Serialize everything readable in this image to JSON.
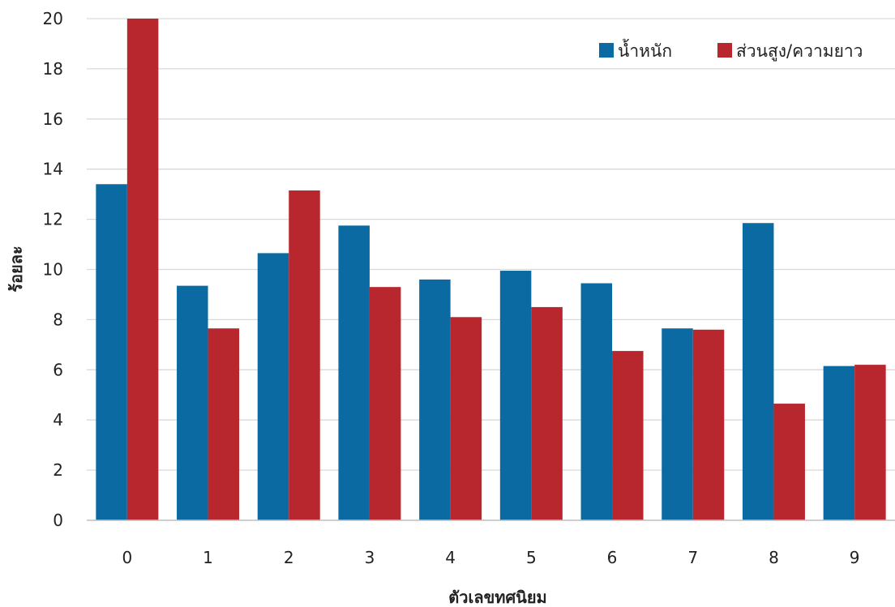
{
  "chart_data": {
    "type": "bar",
    "xlabel": "ตัวเลขทศนิยม",
    "ylabel": "ร้อยละ",
    "categories": [
      "0",
      "1",
      "2",
      "3",
      "4",
      "5",
      "6",
      "7",
      "8",
      "9"
    ],
    "ylim": [
      0,
      20
    ],
    "yticks": [
      0,
      2,
      4,
      6,
      8,
      10,
      12,
      14,
      16,
      18,
      20
    ],
    "grid": true,
    "legend_position": "top-right",
    "series": [
      {
        "name": "น้ำหนัก",
        "color": "#0a6aa1",
        "values": [
          13.4,
          9.35,
          10.65,
          11.75,
          9.6,
          9.95,
          9.45,
          7.65,
          11.85,
          6.15
        ]
      },
      {
        "name": "ส่วนสูง/ความยาว",
        "color": "#b8272e",
        "values": [
          20.0,
          7.65,
          13.15,
          9.3,
          8.1,
          8.5,
          6.75,
          7.6,
          4.65,
          6.2
        ]
      }
    ]
  }
}
